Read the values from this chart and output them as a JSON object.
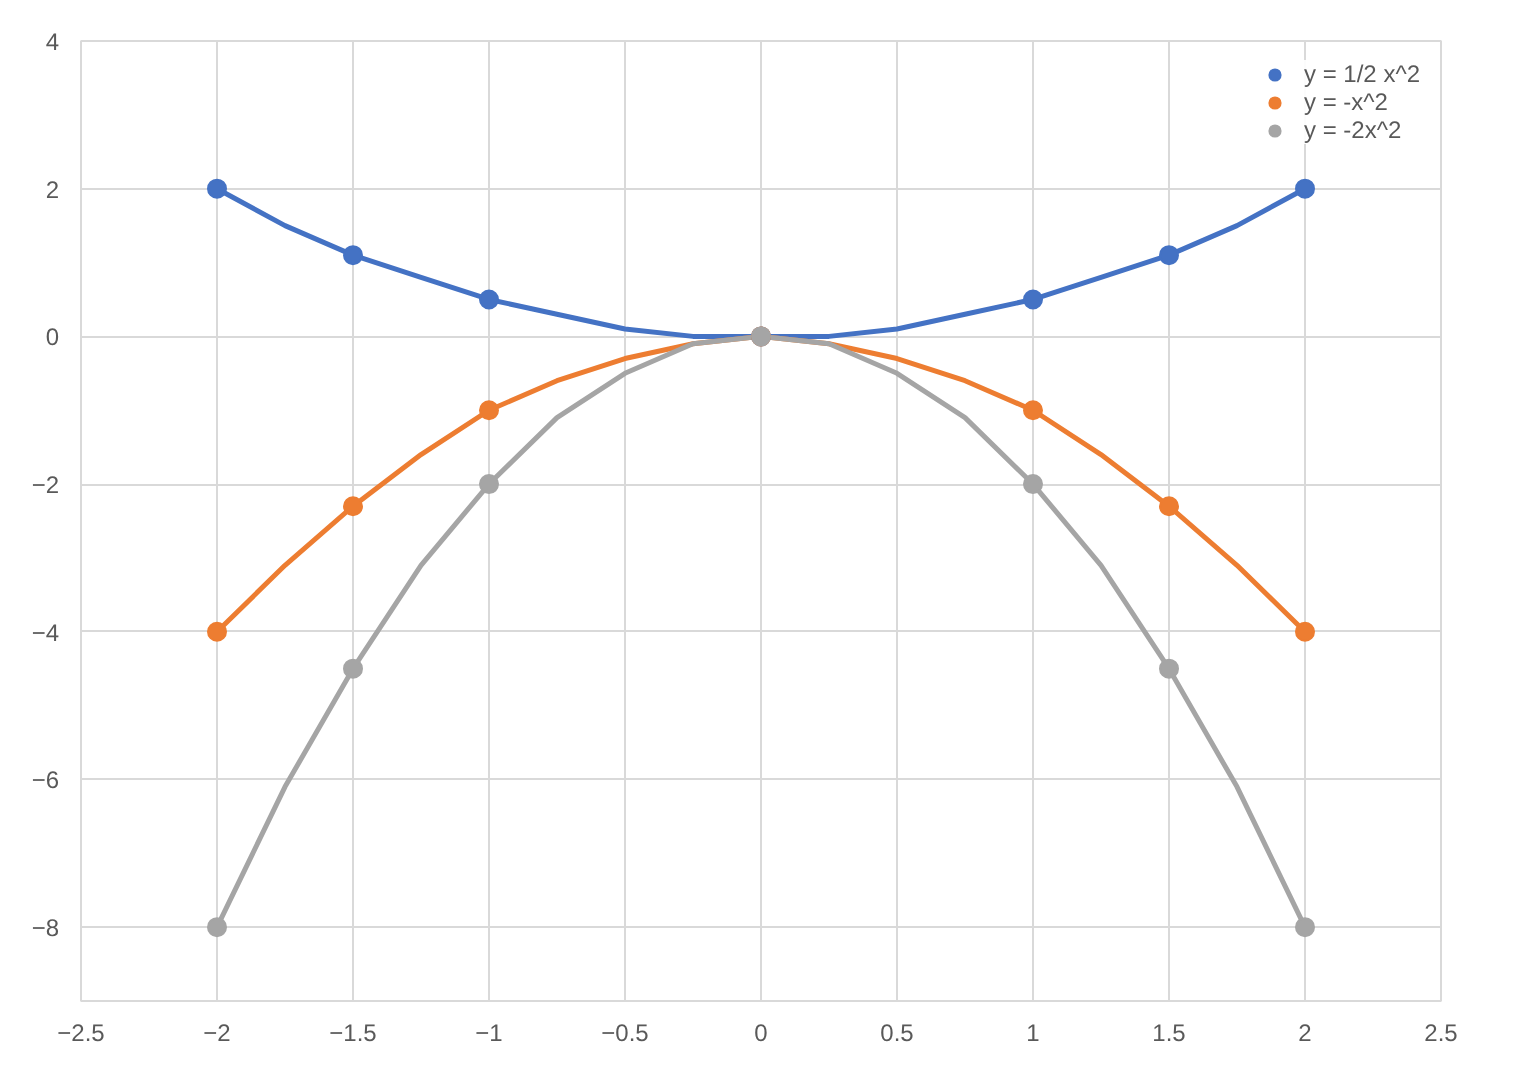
{
  "chart_data": {
    "type": "scatter",
    "marker": "circle",
    "line_style": "solid",
    "grid": true,
    "legend": "top right",
    "x": [
      -2,
      -1.5,
      -1,
      0,
      1,
      1.5,
      2
    ],
    "xlim": [
      -2.5,
      2.5
    ],
    "xticks": [
      -2.5,
      -2,
      -1.5,
      -1,
      -0.5,
      0,
      0.5,
      1,
      1.5,
      2,
      2.5
    ],
    "ylim": [
      -9,
      4
    ],
    "yticks": [
      -8,
      -6,
      -4,
      -2,
      0,
      2,
      4
    ],
    "series": [
      {
        "name": "y = 1/2 x^2",
        "color": "#4472c4",
        "values": [
          2,
          1.1,
          0.5,
          0,
          0.5,
          1.1,
          2
        ]
      },
      {
        "name": "y = -x^2",
        "color": "#ed7d31",
        "values": [
          -4,
          -2.3,
          -1,
          0,
          -1,
          -2.3,
          -4
        ]
      },
      {
        "name": "y = -2x^2",
        "color": "#a5a5a5",
        "values": [
          -8,
          -4.5,
          -2,
          0,
          -2,
          -4.5,
          -8
        ]
      },
      {
        "type": "line",
        "marker": "none",
        "color": "#4472c4",
        "x": [
          -2,
          -1.75,
          -1.5,
          -1.25,
          -1,
          -0.75,
          -0.5,
          -0.25,
          0,
          0.25,
          0.5,
          0.75,
          1,
          1.25,
          1.5,
          1.75,
          2
        ],
        "values": [
          2,
          1.5,
          1.1,
          0.8,
          0.5,
          0.3,
          0.1,
          0.0,
          0,
          0.0,
          0.1,
          0.3,
          0.5,
          0.8,
          1.1,
          1.5,
          2
        ]
      },
      {
        "type": "line",
        "marker": "none",
        "color": "#ed7d31",
        "x": [
          -2,
          -1.75,
          -1.5,
          -1.25,
          -1,
          -0.75,
          -0.5,
          -0.25,
          0,
          0.25,
          0.5,
          0.75,
          1,
          1.25,
          1.5,
          1.75,
          2
        ],
        "values": [
          -4,
          -3.1,
          -2.3,
          -1.6,
          -1,
          -0.6,
          -0.3,
          -0.1,
          0,
          -0.1,
          -0.3,
          -0.6,
          -1,
          -1.6,
          -2.3,
          -3.1,
          -4
        ]
      },
      {
        "type": "line",
        "marker": "none",
        "color": "#a5a5a5",
        "x": [
          -2,
          -1.75,
          -1.5,
          -1.25,
          -1,
          -0.75,
          -0.5,
          -0.25,
          0,
          0.25,
          0.5,
          0.75,
          1,
          1.25,
          1.5,
          1.75,
          2
        ],
        "values": [
          -8,
          -6.1,
          -4.5,
          -3.1,
          -2,
          -1.1,
          -0.5,
          -0.1,
          0,
          -0.1,
          -0.5,
          -1.1,
          -2,
          -3.1,
          -4.5,
          -6.1,
          -8
        ]
      }
    ]
  }
}
